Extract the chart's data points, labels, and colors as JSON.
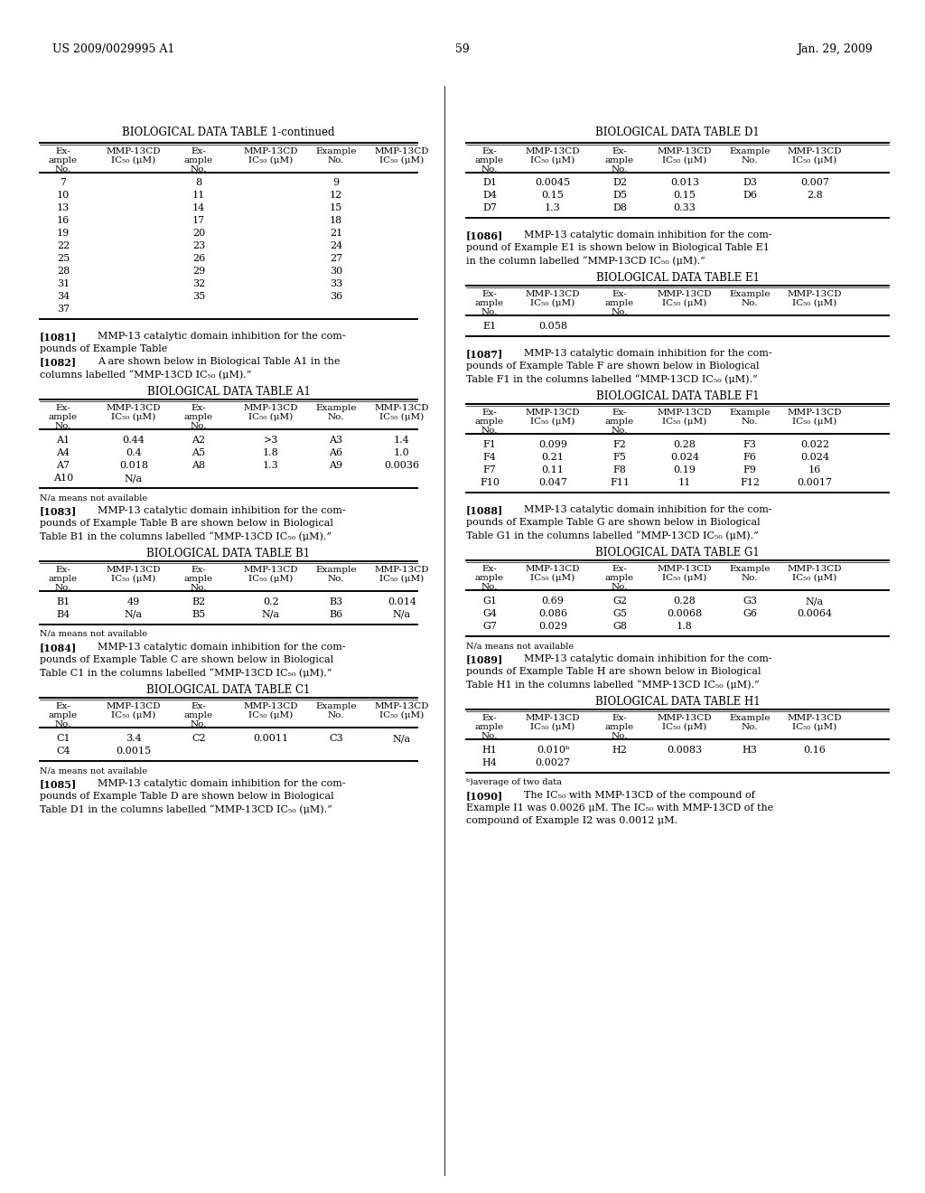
{
  "page_number": "59",
  "header_left": "US 2009/0029995 A1",
  "header_right": "Jan. 29, 2009",
  "background_color": "#ffffff"
}
